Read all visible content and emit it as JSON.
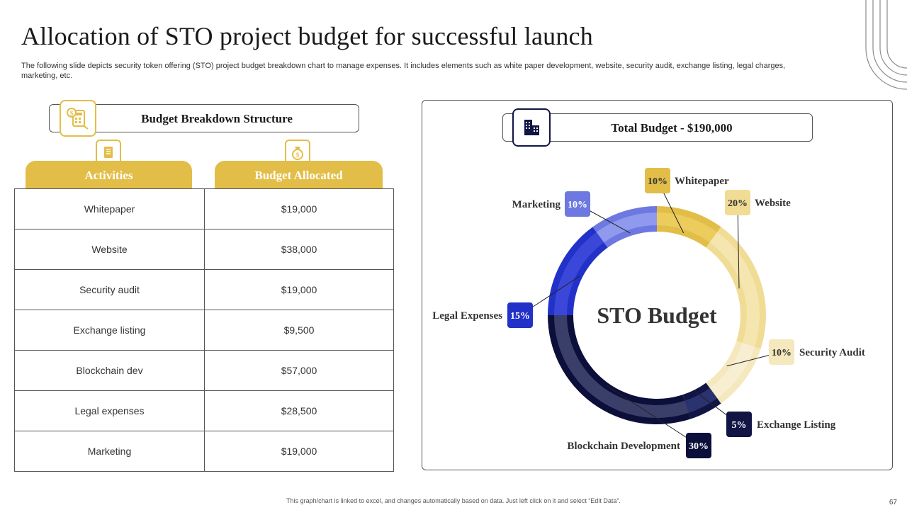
{
  "slide": {
    "title": "Allocation of STO project budget for successful launch",
    "subtitle": "The following slide depicts security token offering (STO) project budget breakdown chart to manage expenses. It includes elements such as white paper development, website, security audit, exchange listing, legal charges, marketing, etc.",
    "footer": "This graph/chart is linked to excel, and changes automatically based on data. Just left click on it and select “Edit Data”.",
    "page_number": "67"
  },
  "left_panel": {
    "heading": "Budget Breakdown Structure",
    "col_activities": "Activities",
    "col_budget": "Budget Allocated",
    "rows": [
      {
        "activity": "Whitepaper",
        "budget": "$19,000"
      },
      {
        "activity": "Website",
        "budget": "$38,000"
      },
      {
        "activity": "Security audit",
        "budget": "$19,000"
      },
      {
        "activity": "Exchange listing",
        "budget": "$9,500"
      },
      {
        "activity": "Blockchain dev",
        "budget": "$57,000"
      },
      {
        "activity": "Legal expenses",
        "budget": "$28,500"
      },
      {
        "activity": "Marketing",
        "budget": "$19,000"
      }
    ]
  },
  "right_panel": {
    "total_label": "Total Budget - $190,000"
  },
  "icons": {
    "budget_structure": "calculator-icon",
    "activities": "document-icon",
    "budget_allocated": "money-bag-icon",
    "total_budget": "buildings-icon"
  },
  "colors": {
    "accent_gold": "#e2be48",
    "navy": "#101544"
  },
  "chart_data": {
    "type": "pie",
    "center_label": "STO Budget",
    "slices": [
      {
        "label": "Whitepaper",
        "pct_label": "10%",
        "value": 10,
        "color": "#e2be48",
        "inner_color": "#ebcc5c"
      },
      {
        "label": "Website",
        "pct_label": "20%",
        "value": 20,
        "color": "#f0dc94",
        "inner_color": "#f5e6b0"
      },
      {
        "label": "Security Audit",
        "pct_label": "10%",
        "value": 10,
        "color": "#f5e8bd",
        "inner_color": "#f8efd2"
      },
      {
        "label": "Exchange Listing",
        "pct_label": "5%",
        "value": 5,
        "color": "#101544",
        "inner_color": "#2a3370"
      },
      {
        "label": "Blockchain Development",
        "pct_label": "30%",
        "value": 30,
        "color": "#0c0f3a",
        "inner_color": "#3a3f6a"
      },
      {
        "label": "Legal Expenses",
        "pct_label": "15%",
        "value": 15,
        "color": "#2231c8",
        "inner_color": "#3a47d8"
      },
      {
        "label": "Marketing",
        "pct_label": "10%",
        "value": 10,
        "color": "#6d78e0",
        "inner_color": "#8f99ee"
      }
    ]
  }
}
